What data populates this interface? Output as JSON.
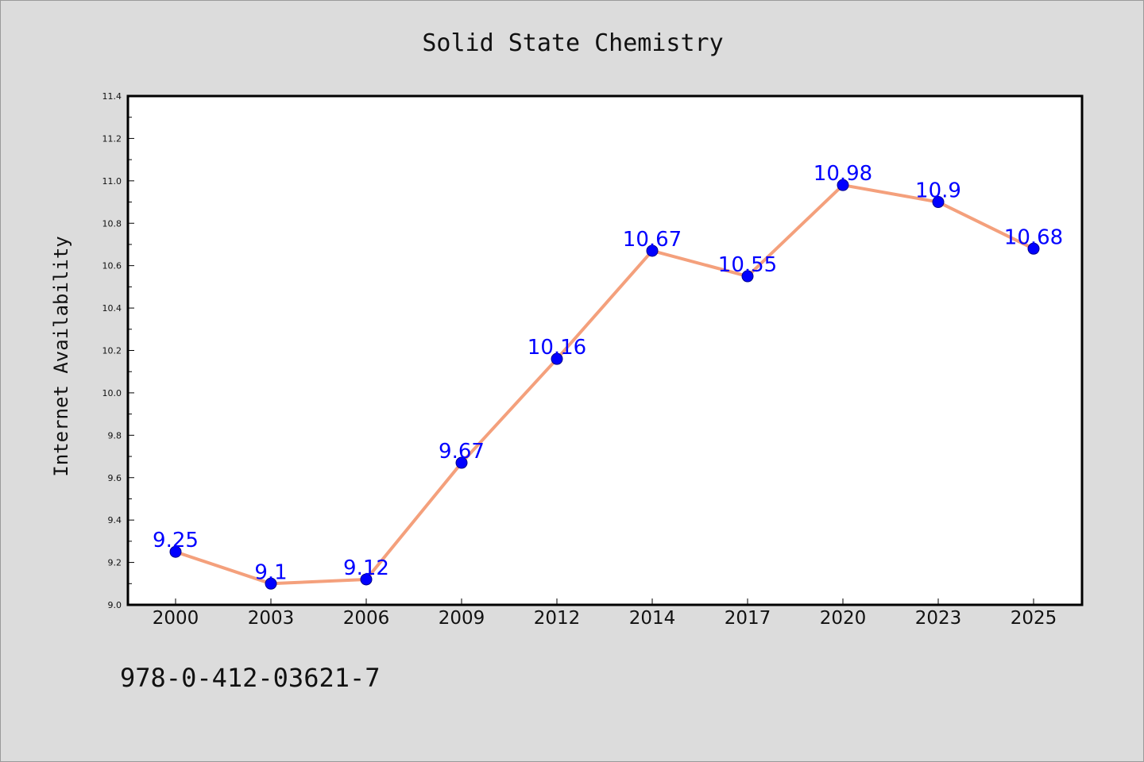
{
  "chart_data": {
    "type": "line",
    "title": "Solid State Chemistry",
    "xlabel": "",
    "ylabel": "Internet Availability",
    "categories": [
      "2000",
      "2003",
      "2006",
      "2009",
      "2012",
      "2014",
      "2017",
      "2020",
      "2023",
      "2025"
    ],
    "series": [
      {
        "values": [
          9.25,
          9.1,
          9.12,
          9.67,
          10.16,
          10.67,
          10.55,
          10.98,
          10.9,
          10.68
        ],
        "labels": [
          "9.25",
          "9.1",
          "9.12",
          "9.67",
          "10.16",
          "10.67",
          "10.55",
          "10.98",
          "10.9",
          "10.68"
        ]
      }
    ],
    "ylim": [
      9.0,
      11.4
    ],
    "yticks": [
      "9.0",
      "9.2",
      "9.4",
      "9.6",
      "9.8",
      "10.0",
      "10.2",
      "10.4",
      "10.6",
      "10.8",
      "11.0",
      "11.2",
      "11.4"
    ],
    "grid": false,
    "legend": "none",
    "colors": {
      "line": "#f4a07c",
      "marker": "#0000ff",
      "marker_edge": "#00008b",
      "value_label": "#0000ff",
      "plot_background": "#ffffff",
      "figure_background": "#dcdcdc"
    }
  },
  "footer": {
    "text": "978-0-412-03621-7"
  }
}
